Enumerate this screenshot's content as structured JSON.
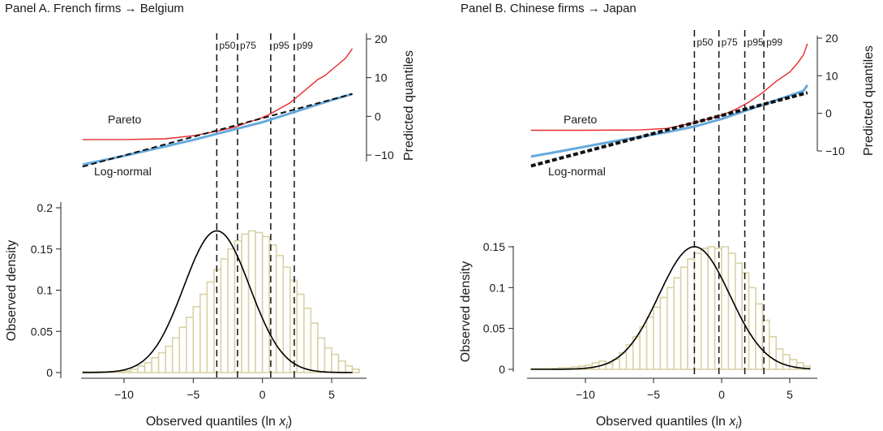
{
  "chart_data": [
    {
      "type": "histogram+line",
      "title": "Panel A. French firms → Belgium",
      "xlabel_main": "Observed quantiles (ln ",
      "xlabel_var": "x",
      "xlabel_sub": "i",
      "xlabel_close": ")",
      "ylabel_left": "Observed density",
      "ylabel_right": "Predicted quantiles",
      "x_ticks": [
        "−10",
        "−5",
        "0",
        "5"
      ],
      "x_tick_values": [
        -10,
        -5,
        0,
        5
      ],
      "xlim": [
        -13.4,
        7.0
      ],
      "density_ticks": [
        "0",
        "0.05",
        "0.1",
        "0.15",
        "0.2"
      ],
      "density_tick_values": [
        0,
        0.05,
        0.1,
        0.15,
        0.2
      ],
      "density_ylim": [
        0,
        0.2
      ],
      "pred_ticks": [
        "−10",
        "0",
        "10",
        "20"
      ],
      "pred_tick_values": [
        -10,
        0,
        10,
        20
      ],
      "pred_ylim": [
        -10,
        20
      ],
      "percentiles": [
        {
          "label": "p50",
          "x": -3.3
        },
        {
          "label": "p75",
          "x": -1.8
        },
        {
          "label": "p95",
          "x": 0.6
        },
        {
          "label": "p99",
          "x": 2.3
        }
      ],
      "histogram": {
        "bin_width": 0.5,
        "x_start": -13,
        "counts": [
          0.001,
          0.001,
          0.001,
          0.001,
          0.001,
          0.001,
          0.002,
          0.004,
          0.008,
          0.012,
          0.018,
          0.024,
          0.032,
          0.042,
          0.055,
          0.067,
          0.08,
          0.095,
          0.11,
          0.125,
          0.138,
          0.15,
          0.16,
          0.168,
          0.172,
          0.17,
          0.165,
          0.155,
          0.142,
          0.128,
          0.112,
          0.095,
          0.078,
          0.06,
          0.042,
          0.03,
          0.022,
          0.014,
          0.008,
          0.004
        ]
      },
      "normal_fit": {
        "mean": -3.3,
        "sd": 2.38
      },
      "series": [
        {
          "name": "Pareto",
          "color": "#e8292b",
          "x": [
            -13.0,
            -10.0,
            -7.0,
            -5.0,
            -3.5,
            -2.0,
            -1.0,
            0.0,
            0.5,
            1.0,
            1.5,
            2.0,
            2.5,
            3.0,
            3.5,
            4.0,
            4.5,
            5.0,
            5.5,
            6.0,
            6.5
          ],
          "y": [
            -6.0,
            -6.0,
            -5.8,
            -5.0,
            -4.0,
            -2.8,
            -1.5,
            -0.3,
            0.5,
            1.5,
            2.5,
            3.5,
            5.0,
            6.5,
            8.0,
            9.5,
            10.5,
            12.0,
            13.5,
            15.0,
            17.5
          ]
        },
        {
          "name": "",
          "color": "#66aadd",
          "x": [
            -13.0,
            -10.0,
            -5.0,
            0.0,
            5.0,
            6.5
          ],
          "y": [
            -12.5,
            -10.2,
            -6.1,
            -1.5,
            4.2,
            5.8
          ]
        },
        {
          "name": "Log-normal",
          "color": "#111111",
          "x": [
            -13.0,
            6.5
          ],
          "y": [
            -13.0,
            5.8
          ]
        }
      ]
    },
    {
      "type": "histogram+line",
      "title": "Panel B. Chinese firms → Japan",
      "xlabel_main": "Observed quantiles (ln ",
      "xlabel_var": "x",
      "xlabel_sub": "i",
      "xlabel_close": ")",
      "ylabel_left": "Observed density",
      "ylabel_right": "Predicted quantiles",
      "x_ticks": [
        "−10",
        "−5",
        "0",
        "5"
      ],
      "x_tick_values": [
        -10,
        -5,
        0,
        5
      ],
      "xlim": [
        -14.5,
        7.0
      ],
      "density_ticks": [
        "0",
        "0.05",
        "0.1",
        "0.15"
      ],
      "density_tick_values": [
        0,
        0.05,
        0.1,
        0.15
      ],
      "density_ylim": [
        0,
        0.15
      ],
      "pred_ticks": [
        "−10",
        "0",
        "10",
        "20"
      ],
      "pred_tick_values": [
        -10,
        0,
        10,
        20
      ],
      "pred_ylim": [
        -10,
        20
      ],
      "percentiles": [
        {
          "label": "p50",
          "x": -2.0
        },
        {
          "label": "p75",
          "x": -0.2
        },
        {
          "label": "p95",
          "x": 1.7
        },
        {
          "label": "p99",
          "x": 3.1
        }
      ],
      "histogram": {
        "bin_width": 0.5,
        "x_start": -14,
        "counts": [
          0.001,
          0.001,
          0.001,
          0.001,
          0.002,
          0.002,
          0.003,
          0.004,
          0.005,
          0.008,
          0.01,
          0.007,
          0.012,
          0.02,
          0.03,
          0.04,
          0.052,
          0.064,
          0.076,
          0.088,
          0.1,
          0.112,
          0.125,
          0.135,
          0.142,
          0.148,
          0.15,
          0.148,
          0.15,
          0.142,
          0.13,
          0.118,
          0.1,
          0.08,
          0.06,
          0.04,
          0.025,
          0.018,
          0.012,
          0.008,
          0.004
        ]
      },
      "normal_fit": {
        "mean": -2.0,
        "sd": 2.6
      },
      "series": [
        {
          "name": "Pareto",
          "color": "#e8292b",
          "x": [
            -14.0,
            -10.0,
            -6.0,
            -4.0,
            -2.0,
            -1.0,
            0.0,
            1.0,
            2.0,
            3.0,
            4.0,
            5.0,
            5.5,
            6.0,
            6.3
          ],
          "y": [
            -4.5,
            -4.5,
            -4.4,
            -4.0,
            -2.5,
            -1.5,
            -0.5,
            1.0,
            3.0,
            5.5,
            8.5,
            11.0,
            13.0,
            15.5,
            18.5
          ]
        },
        {
          "name": "",
          "color": "#66aadd",
          "x": [
            -14.0,
            -12.0,
            -8.0,
            -4.0,
            -2.0,
            0.0,
            2.0,
            4.0,
            6.0,
            6.3
          ],
          "y": [
            -11.5,
            -10.2,
            -7.5,
            -5.0,
            -3.5,
            -1.5,
            1.0,
            3.5,
            6.0,
            7.5
          ]
        },
        {
          "name": "Log-normal",
          "color": "#111111",
          "x": [
            -14.0,
            6.3
          ],
          "y": [
            -14.0,
            5.5
          ]
        }
      ]
    }
  ]
}
